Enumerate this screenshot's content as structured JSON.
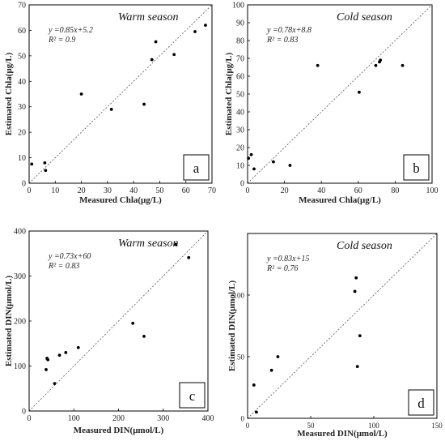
{
  "chart_data": [
    {
      "type": "scatter",
      "panel_label": "a",
      "season_label": "Warm season",
      "equation": "y =0.85x+5.2",
      "r2": "R² = 0.9",
      "xlabel": "Measured Chla(μg/L)",
      "ylabel": "Estimated Chla(μg/L)",
      "xlim": [
        0,
        70
      ],
      "ylim": [
        0,
        70
      ],
      "xticks": [
        0,
        10,
        20,
        30,
        40,
        50,
        60,
        70
      ],
      "yticks": [
        0,
        10,
        20,
        30,
        40,
        50,
        60,
        70
      ],
      "reference_line": "1:1",
      "points": [
        [
          1,
          7.5
        ],
        [
          6,
          8
        ],
        [
          6.3,
          5
        ],
        [
          20,
          35
        ],
        [
          31.5,
          29
        ],
        [
          44,
          31
        ],
        [
          47,
          48.5
        ],
        [
          48.5,
          55.5
        ],
        [
          55.5,
          50.5
        ],
        [
          63.5,
          59.5
        ],
        [
          67.5,
          62
        ]
      ]
    },
    {
      "type": "scatter",
      "panel_label": "b",
      "season_label": "Cold season",
      "equation": "y =0.78x+8.8",
      "r2": "R² = 0.83",
      "xlabel": "Measured Chla(μg/L)",
      "ylabel": "Estimated Chla(μg/L)",
      "xlim": [
        0,
        100
      ],
      "ylim": [
        0,
        100
      ],
      "xticks": [
        0,
        20,
        40,
        60,
        80,
        100
      ],
      "yticks": [
        0,
        10,
        20,
        30,
        40,
        50,
        60,
        70,
        80,
        90,
        100
      ],
      "reference_line": "1:1",
      "points": [
        [
          0.5,
          14
        ],
        [
          2,
          16
        ],
        [
          3.5,
          8
        ],
        [
          14,
          12
        ],
        [
          23,
          10
        ],
        [
          38,
          66
        ],
        [
          60.5,
          51
        ],
        [
          69.5,
          66
        ],
        [
          71.5,
          68
        ],
        [
          72,
          69
        ],
        [
          84,
          66
        ]
      ]
    },
    {
      "type": "scatter",
      "panel_label": "c",
      "season_label": "Warm season",
      "equation": "y =0.73x+60",
      "r2": "R² = 0.83",
      "xlabel": "Measured DIN(μmol/L)",
      "ylabel": "Estimated DIN(μmol/L)",
      "xlim": [
        0,
        400
      ],
      "ylim": [
        0,
        400
      ],
      "xticks": [
        0,
        100,
        200,
        300,
        400
      ],
      "yticks": [
        0,
        100,
        200,
        300,
        400
      ],
      "reference_line": "1:1",
      "points": [
        [
          38,
          92
        ],
        [
          40,
          117
        ],
        [
          42,
          114
        ],
        [
          57,
          61
        ],
        [
          68,
          124
        ],
        [
          82,
          130
        ],
        [
          110,
          141
        ],
        [
          232,
          195
        ],
        [
          257,
          166
        ],
        [
          328,
          370
        ],
        [
          357,
          341
        ]
      ]
    },
    {
      "type": "scatter",
      "panel_label": "d",
      "season_label": "Cold season",
      "equation": "y =0.83x+15",
      "r2": "R² = 0.76",
      "xlabel": "Measured DIN(μmol/L)",
      "ylabel": "Estimated DIN(μmol/L)",
      "xlim": [
        0,
        150
      ],
      "ylim": [
        0,
        150
      ],
      "xticks": [
        0,
        50,
        100,
        150
      ],
      "yticks": [
        0,
        50,
        100
      ],
      "reference_line": "1:1",
      "points": [
        [
          5,
          27
        ],
        [
          7,
          5
        ],
        [
          19,
          39
        ],
        [
          24,
          50
        ],
        [
          85,
          103
        ],
        [
          86,
          114
        ],
        [
          87,
          42
        ],
        [
          89,
          67
        ]
      ]
    }
  ]
}
